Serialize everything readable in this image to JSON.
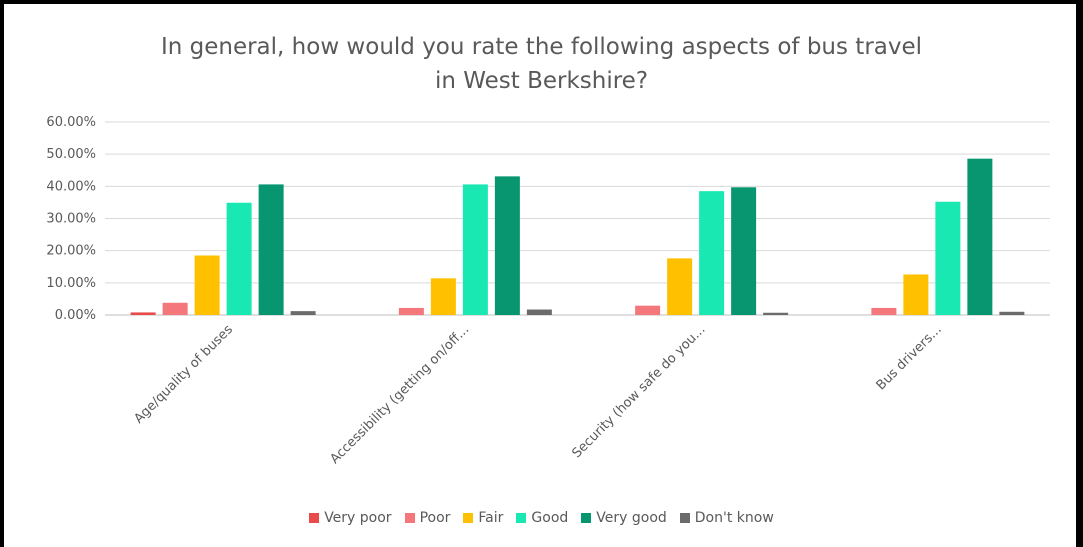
{
  "chart_data": {
    "type": "bar",
    "title_lines": [
      "In general, how would you rate the following aspects of bus travel",
      "in West Berkshire?"
    ],
    "categories": [
      "Age/quality of buses",
      "Accessibility (getting on/off...",
      "Security (how safe do you...",
      "Bus drivers..."
    ],
    "series": [
      {
        "name": "Very poor",
        "color": "#e94b4b",
        "values": [
          0.8,
          0.0,
          0.0,
          0.0
        ]
      },
      {
        "name": "Poor",
        "color": "#f4787b",
        "values": [
          3.8,
          2.2,
          2.9,
          2.2
        ]
      },
      {
        "name": "Fair",
        "color": "#ffc000",
        "values": [
          18.5,
          11.4,
          17.6,
          12.6
        ]
      },
      {
        "name": "Good",
        "color": "#19e8b3",
        "values": [
          34.9,
          40.6,
          38.5,
          35.2
        ]
      },
      {
        "name": "Very good",
        "color": "#07966f",
        "values": [
          40.6,
          43.1,
          39.7,
          48.6
        ]
      },
      {
        "name": "Don't know",
        "color": "#6b6b6b",
        "values": [
          1.2,
          1.7,
          0.7,
          1.0
        ]
      }
    ],
    "ylim": [
      0,
      60
    ],
    "ytick_labels": [
      "0.00%",
      "10.00%",
      "20.00%",
      "30.00%",
      "40.00%",
      "50.00%",
      "60.00%"
    ],
    "grid": true,
    "legend_position": "bottom"
  }
}
